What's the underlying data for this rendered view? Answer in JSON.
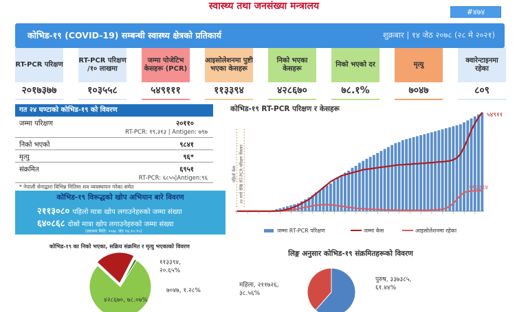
{
  "header": {
    "ministry": "स्वास्थ्य तथा जनसंख्या मन्त्रालय",
    "ref_number": "#४७४",
    "title": "कोभिड-१९ (COVID-19) सम्बन्धी स्वास्थ्य क्षेत्रको प्रतिकार्य",
    "date": "शुक्रबार | १४ जेठ २०७८ (२८ मे २०२१)"
  },
  "stats": [
    {
      "label": "RT-PCR परिक्षण",
      "value": "२०१७३७७",
      "color": "#dce9f8"
    },
    {
      "label": "RT-PCR परिक्षण /१० लाखमा",
      "value": "१०३५५८",
      "color": "#dce9f8"
    },
    {
      "label": "जम्मा पोजेटिभ केसहरू (PCR)",
      "value": "५४९१११",
      "color": "#f4908f"
    },
    {
      "label": "आइसोलेशनमा पुष्टी भएका केसहरू",
      "value": "११३३९४",
      "color": "#f7c99b"
    },
    {
      "label": "निको भएका केसहरू",
      "value": "४२८६७०",
      "color": "#b7e08a"
    },
    {
      "label": "निको भएको दर",
      "value": "७८.१%",
      "color": "#b7e08a"
    },
    {
      "label": "मृत्यु",
      "value": "७०४७",
      "color": "#f4a36e"
    },
    {
      "label": "क्वारेन्टाइनमा रहेका",
      "value": "८०९",
      "color": "#dce9f8"
    }
  ],
  "last24": {
    "title": "गत २४ घण्टाको कोभिड-१९ को विवरण",
    "rows": [
      {
        "label": "जम्मा परिक्षण",
        "value": "२०११०",
        "sub": "RT-PCR: १९,३१३ | Antigen: ७९७"
      },
      {
        "label": "निको भएको",
        "value": "९८४१",
        "sub": ""
      },
      {
        "label": "मृत्यु",
        "value": "९६*",
        "sub": ""
      },
      {
        "label": "संक्रमित",
        "value": "६९५१",
        "sub": "RT-PCR: ६८५५|Antigen:९६"
      }
    ],
    "note": "* नेपाली सेनाद्वारा विभिन्न मितिमा शव व्यवस्थापन गरेका समेत"
  },
  "vaccine": {
    "title": "कोभिड-१९ विरूद्धको खोप अभियान बारे विवरण",
    "dose1_value": "२११३०८०",
    "dose1_label": "पहिलो मात्रा खोप लगाउनेहरुको जम्मा संख्या",
    "dose2_value": "६४०८६८",
    "dose2_label": "दोस्रो मात्रा खोप लगाउनेहरुको जम्मा संख्या",
    "source": "(स्वास्थ्य मिति: २०७८ जेठ १४,१०:१५)"
  },
  "colors": {
    "bars": "#5b8ec9",
    "cases": "#b01c1c",
    "isolation": "#e05a5a",
    "recovered": "#8cc84b",
    "female": "#d24b43",
    "male": "#4f82c2"
  },
  "chart_data": [
    {
      "type": "line",
      "title": "कोभिड-१९ RT-PCR परिक्षण र केसहरू",
      "legend_position": "bottom",
      "annotations": [
        "पहिलो केस",
        "२४ मार्च देखि RT-PCR परिक्षण विस्तार"
      ],
      "end_labels": [
        "५४९१११",
        "११३३९४"
      ],
      "series": [
        {
          "name": "जम्मा RT-PCR परिक्षण",
          "kind": "bar",
          "values": [
            0,
            0,
            0,
            0,
            0,
            0,
            0,
            0,
            0,
            0.005,
            0.01,
            0.02,
            0.03,
            0.04,
            0.05,
            0.06,
            0.07,
            0.08,
            0.1,
            0.12,
            0.14,
            0.16,
            0.19,
            0.21,
            0.24,
            0.26,
            0.28,
            0.31,
            0.34,
            0.36,
            0.39,
            0.41,
            0.44,
            0.46,
            0.49,
            0.51,
            0.53,
            0.55,
            0.57,
            0.59,
            0.61,
            0.63,
            0.65,
            0.67,
            0.69,
            0.7,
            0.72,
            0.73,
            0.74,
            0.75,
            0.76,
            0.77,
            0.78,
            0.79,
            0.8,
            0.81,
            0.82,
            0.83,
            0.84,
            0.85,
            0.86,
            0.87,
            0.88,
            0.9,
            0.92,
            0.94,
            0.96,
            0.98,
            1.0
          ]
        },
        {
          "name": "जम्मा केस",
          "kind": "line",
          "values": [
            0,
            0,
            0,
            0,
            0,
            0,
            0,
            0,
            0,
            0,
            0,
            0.002,
            0.005,
            0.01,
            0.02,
            0.03,
            0.045,
            0.06,
            0.08,
            0.1,
            0.12,
            0.15,
            0.18,
            0.21,
            0.24,
            0.27,
            0.3,
            0.32,
            0.34,
            0.36,
            0.37,
            0.38,
            0.39,
            0.4,
            0.41,
            0.42,
            0.425,
            0.43,
            0.435,
            0.44,
            0.445,
            0.45,
            0.455,
            0.46,
            0.465,
            0.47,
            0.47,
            0.475,
            0.475,
            0.48,
            0.48,
            0.485,
            0.485,
            0.49,
            0.49,
            0.495,
            0.5,
            0.5,
            0.505,
            0.51,
            0.52,
            0.54,
            0.58,
            0.65,
            0.73,
            0.82,
            0.89,
            0.95,
            1.0
          ]
        },
        {
          "name": "आइसोलेशनमा रहेका",
          "kind": "line",
          "values": [
            0,
            0,
            0,
            0,
            0,
            0,
            0,
            0,
            0,
            0,
            0,
            0.001,
            0.002,
            0.004,
            0.008,
            0.012,
            0.018,
            0.025,
            0.033,
            0.04,
            0.048,
            0.055,
            0.06,
            0.064,
            0.066,
            0.066,
            0.064,
            0.06,
            0.055,
            0.05,
            0.045,
            0.04,
            0.035,
            0.03,
            0.027,
            0.024,
            0.022,
            0.02,
            0.018,
            0.016,
            0.015,
            0.014,
            0.013,
            0.012,
            0.011,
            0.011,
            0.01,
            0.01,
            0.01,
            0.01,
            0.01,
            0.01,
            0.01,
            0.011,
            0.012,
            0.013,
            0.015,
            0.02,
            0.03,
            0.05,
            0.08,
            0.12,
            0.16,
            0.19,
            0.2,
            0.205,
            0.206,
            0.207,
            0.207
          ]
        }
      ]
    },
    {
      "type": "pie",
      "title": "कोभिड-१९ का निको भएका, सक्रिय संक्रमित र मृत्यु भएकाको विवरण",
      "slices": [
        {
          "label": "४२८६७०, ७८.०७%",
          "value": 428670
        },
        {
          "label": "११३३९४, २०.६५%",
          "value": 113394
        },
        {
          "label": "७०४७, १.२८%",
          "value": 7047
        }
      ]
    },
    {
      "type": "pie",
      "title": "लिङ्ग अनुसार कोभिड-१९ संक्रमितहरूको विवरण",
      "slices": [
        {
          "label": "पुरुष, ३३७३८५, ६१.४४%",
          "value": 337385
        },
        {
          "label": "महिला, २११७२६, ३८.५६%",
          "value": 211726
        }
      ]
    }
  ]
}
